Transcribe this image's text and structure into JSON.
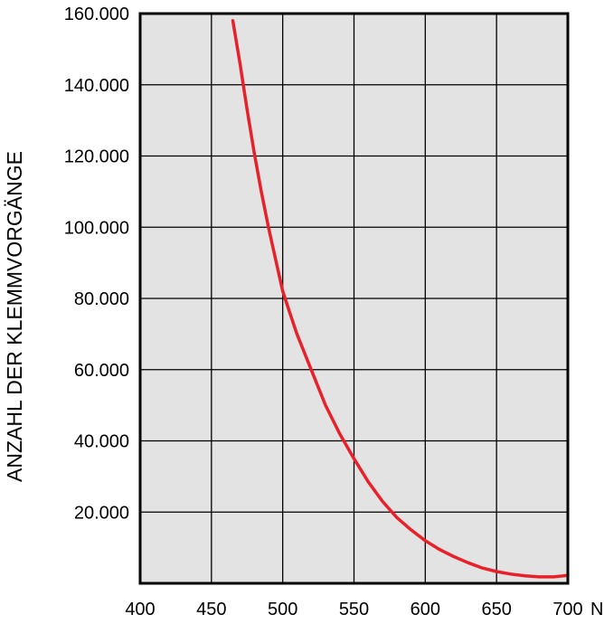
{
  "chart_data": {
    "type": "line",
    "title": "",
    "xlabel": "",
    "x_unit": "N",
    "ylabel": "ANZAHL DER KLEMMVORGÄNGE",
    "xlim": [
      400,
      700
    ],
    "ylim": [
      0,
      160000
    ],
    "x_ticks": [
      "400",
      "450",
      "500",
      "550",
      "600",
      "650",
      "700"
    ],
    "x_tick_values": [
      400,
      450,
      500,
      550,
      600,
      650,
      700
    ],
    "y_ticks": [
      "20.000",
      "40.000",
      "60.000",
      "80.000",
      "100.000",
      "120.000",
      "140.000",
      "160.000"
    ],
    "y_tick_values": [
      20000,
      40000,
      60000,
      80000,
      100000,
      120000,
      140000,
      160000
    ],
    "grid": true,
    "series": [
      {
        "x": [
          465,
          470,
          475,
          480,
          485,
          490,
          495,
          500,
          505,
          510,
          520,
          530,
          540,
          550,
          560,
          570,
          580,
          590,
          600,
          610,
          620,
          630,
          640,
          650,
          660,
          670,
          680,
          690,
          700
        ],
        "y": [
          158000,
          146000,
          133000,
          121000,
          110000,
          100000,
          91000,
          82000,
          76000,
          70000,
          60000,
          50000,
          42000,
          35000,
          28500,
          23000,
          18500,
          15000,
          12000,
          9500,
          7500,
          5800,
          4300,
          3300,
          2600,
          2100,
          1800,
          1800,
          2200
        ]
      }
    ],
    "colors": {
      "line": "#e8202a",
      "plot_background": "#e3e3e3",
      "grid": "#000000"
    }
  }
}
